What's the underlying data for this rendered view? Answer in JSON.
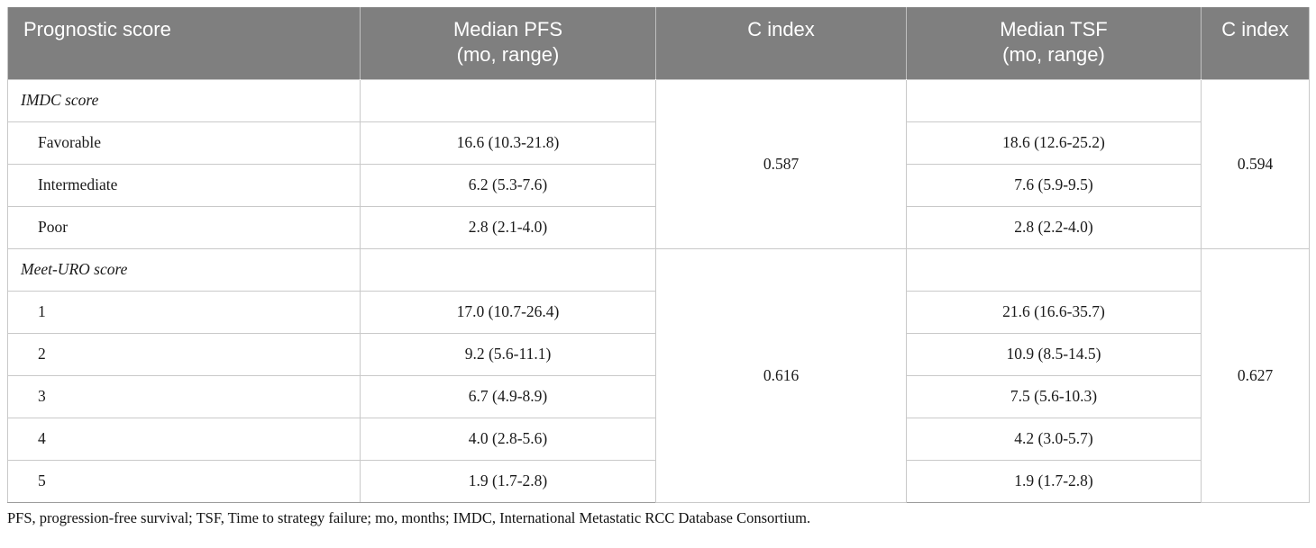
{
  "table": {
    "headers": {
      "prognostic": "Prognostic score",
      "pfs_line1": "Median PFS",
      "pfs_line2": "(mo, range)",
      "c_index_pfs": "C index",
      "tsf_line1": "Median TSF",
      "tsf_line2": "(mo, range)",
      "c_index_tsf": "C index"
    },
    "sections": [
      {
        "name": "IMDC score",
        "pfs_c_index": "0.587",
        "tsf_c_index": "0.594",
        "rows": [
          {
            "label": "Favorable",
            "pfs": "16.6 (10.3-21.8)",
            "tsf": "18.6 (12.6-25.2)"
          },
          {
            "label": "Intermediate",
            "pfs": "6.2 (5.3-7.6)",
            "tsf": "7.6 (5.9-9.5)"
          },
          {
            "label": "Poor",
            "pfs": "2.8 (2.1-4.0)",
            "tsf": "2.8 (2.2-4.0)"
          }
        ]
      },
      {
        "name": "Meet-URO score",
        "pfs_c_index": "0.616",
        "tsf_c_index": "0.627",
        "rows": [
          {
            "label": "1",
            "pfs": "17.0 (10.7-26.4)",
            "tsf": "21.6 (16.6-35.7)"
          },
          {
            "label": "2",
            "pfs": "9.2 (5.6-11.1)",
            "tsf": "10.9 (8.5-14.5)"
          },
          {
            "label": "3",
            "pfs": "6.7 (4.9-8.9)",
            "tsf": "7.5 (5.6-10.3)"
          },
          {
            "label": "4",
            "pfs": "4.0 (2.8-5.6)",
            "tsf": "4.2 (3.0-5.7)"
          },
          {
            "label": "5",
            "pfs": "1.9 (1.7-2.8)",
            "tsf": "1.9 (1.7-2.8)"
          }
        ]
      }
    ],
    "footnote": "PFS, progression-free survival; TSF, Time to strategy failure; mo, months; IMDC, International Metastatic RCC Database Consortium.",
    "colors": {
      "header_bg": "#7f7f7f",
      "header_text": "#ffffff",
      "row_border": "#c9c9c9",
      "body_text": "#1a1a1a"
    }
  }
}
